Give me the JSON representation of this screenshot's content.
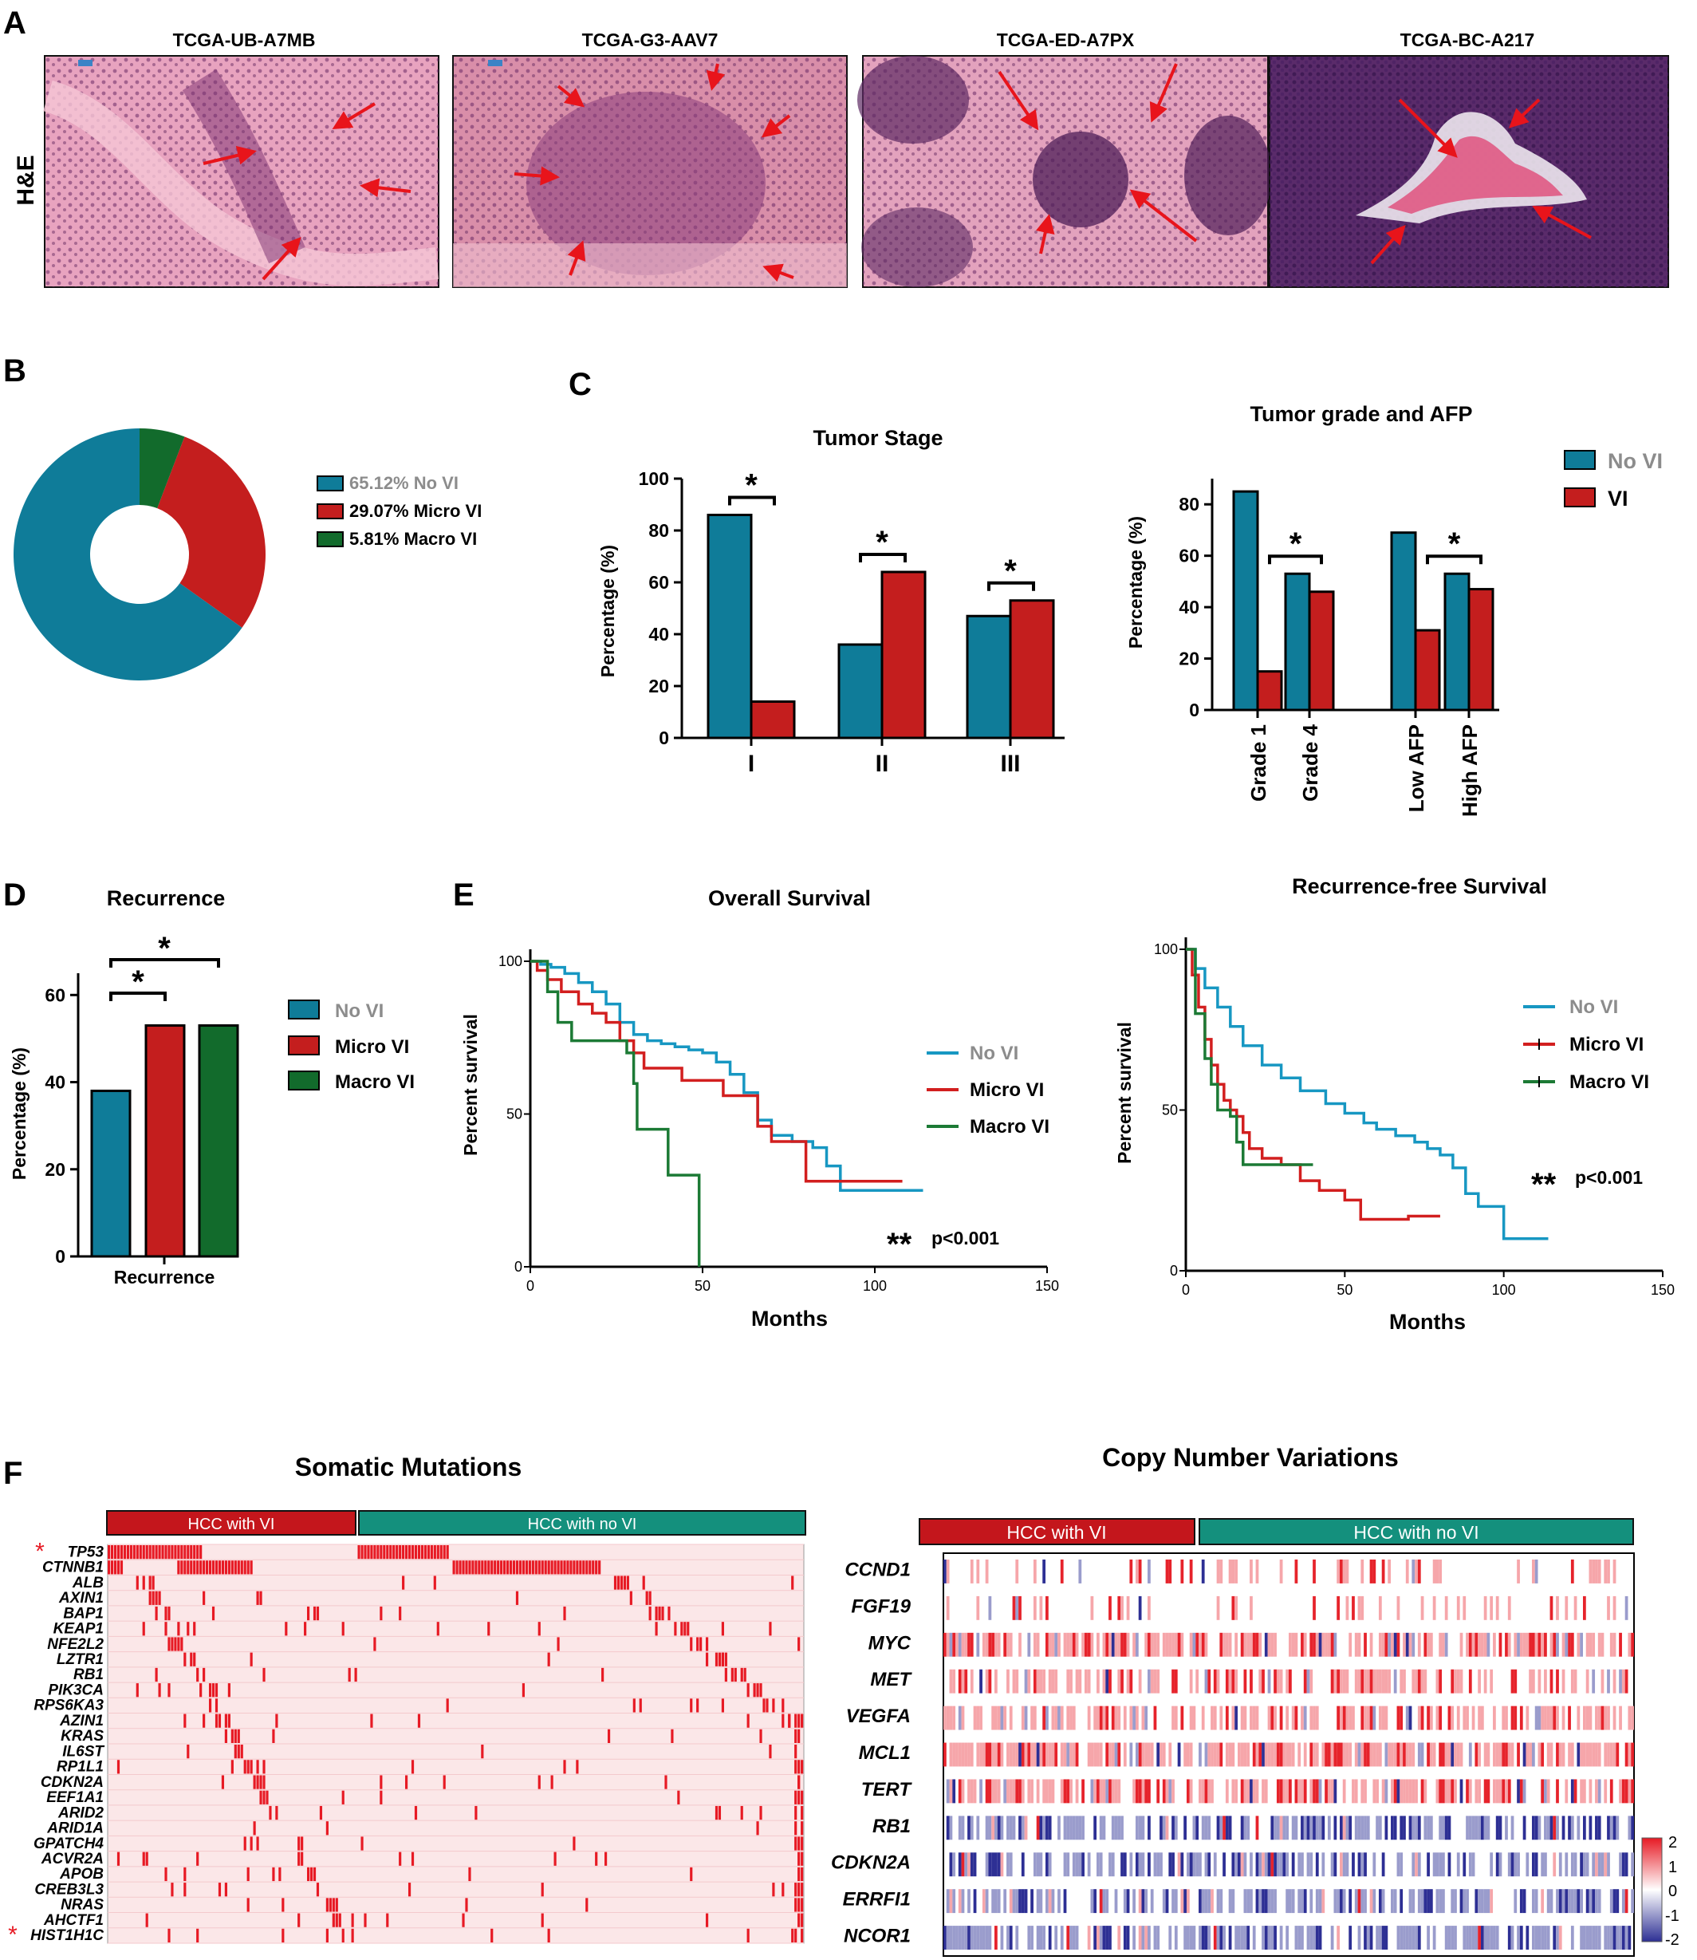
{
  "panel_letters": {
    "A": "A",
    "B": "B",
    "C": "C",
    "D": "D",
    "E": "E",
    "F": "F"
  },
  "colors": {
    "no_vi": "#0f7c99",
    "vi": "#c41e1e",
    "macro": "#126b2c",
    "he_pink": "#e79ab8",
    "he_purple": "#7e3b73",
    "arrow": "#e8141b",
    "teal_header": "#14907d",
    "heat_red": "#e71a24",
    "heat_blue": "#2d2f94"
  },
  "panel_A": {
    "row_label": "H&E",
    "images": [
      {
        "title": "TCGA-UB-A7MB"
      },
      {
        "title": "TCGA-G3-AAV7"
      },
      {
        "title": "TCGA-ED-A7PX"
      },
      {
        "title": "TCGA-BC-A217"
      }
    ]
  },
  "chart_data": [
    {
      "id": "B",
      "type": "pie",
      "title": "",
      "slices": [
        {
          "label": "65.12% No VI",
          "value": 65.12,
          "color": "#0f7c99",
          "text_color": "#8c8c8c"
        },
        {
          "label": "29.07% Micro VI",
          "value": 29.07,
          "color": "#c41e1e",
          "text_color": "#000000"
        },
        {
          "label": "5.81% Macro VI",
          "value": 5.81,
          "color": "#126b2c",
          "text_color": "#000000"
        }
      ],
      "legend": "right"
    },
    {
      "id": "C1",
      "type": "bar",
      "title": "Tumor Stage",
      "ylabel": "Percentage (%)",
      "categories": [
        "I",
        "II",
        "III"
      ],
      "series": [
        {
          "name": "No VI",
          "values": [
            86,
            36,
            47
          ]
        },
        {
          "name": "VI",
          "values": [
            14,
            64,
            53
          ]
        }
      ],
      "ylim": [
        0,
        100
      ],
      "yticks": [
        0,
        20,
        40,
        60,
        80,
        100
      ],
      "significance": [
        "*",
        "*",
        "*"
      ]
    },
    {
      "id": "C2",
      "type": "bar",
      "title": "Tumor grade and AFP",
      "ylabel": "Percentage (%)",
      "categories": [
        "Grade 1",
        "Grade 4",
        "Low AFP",
        "High AFP"
      ],
      "series": [
        {
          "name": "No VI",
          "values": [
            85,
            53,
            69,
            53
          ]
        },
        {
          "name": "VI",
          "values": [
            15,
            46,
            31,
            47
          ]
        }
      ],
      "ylim": [
        0,
        90
      ],
      "yticks": [
        0,
        20,
        40,
        60,
        80
      ],
      "significance": [
        "*",
        "*"
      ],
      "legend_entries": [
        "No VI",
        "VI"
      ]
    },
    {
      "id": "D",
      "type": "bar",
      "title": "Recurrence",
      "ylabel": "Percentage (%)",
      "xlabel": "Recurrence",
      "categories": [
        "No VI",
        "Micro VI",
        "Macro VI"
      ],
      "values": [
        38,
        53,
        53
      ],
      "ylim": [
        0,
        65
      ],
      "yticks": [
        0,
        20,
        40,
        60
      ],
      "significance": [
        "*",
        "*"
      ],
      "legend_entries": [
        "No VI",
        "Micro VI",
        "Macro VI"
      ]
    },
    {
      "id": "E1",
      "type": "line",
      "title": "Overall Survival",
      "xlabel": "Months",
      "ylabel": "Percent survival",
      "xlim": [
        0,
        150
      ],
      "ylim": [
        0,
        100
      ],
      "xticks": [
        0,
        50,
        100,
        150
      ],
      "yticks": [
        0,
        50,
        100
      ],
      "pvalue": "p<0.001",
      "stars": "**",
      "series": [
        {
          "name": "No VI",
          "points": [
            [
              0,
              100
            ],
            [
              3,
              99
            ],
            [
              6,
              98
            ],
            [
              10,
              96
            ],
            [
              14,
              93
            ],
            [
              18,
              90
            ],
            [
              22,
              86
            ],
            [
              26,
              80
            ],
            [
              30,
              76
            ],
            [
              34,
              74
            ],
            [
              38,
              73
            ],
            [
              42,
              72
            ],
            [
              46,
              71
            ],
            [
              50,
              70
            ],
            [
              54,
              67
            ],
            [
              58,
              63
            ],
            [
              62,
              57
            ],
            [
              66,
              48
            ],
            [
              70,
              43
            ],
            [
              76,
              41
            ],
            [
              82,
              39
            ],
            [
              86,
              33
            ],
            [
              90,
              25
            ],
            [
              100,
              25
            ],
            [
              114,
              25
            ]
          ]
        },
        {
          "name": "Micro VI",
          "points": [
            [
              0,
              100
            ],
            [
              2,
              97
            ],
            [
              5,
              94
            ],
            [
              9,
              90
            ],
            [
              14,
              86
            ],
            [
              18,
              83
            ],
            [
              22,
              80
            ],
            [
              26,
              74
            ],
            [
              30,
              70
            ],
            [
              33,
              65
            ],
            [
              40,
              65
            ],
            [
              44,
              61
            ],
            [
              52,
              61
            ],
            [
              56,
              56
            ],
            [
              62,
              56
            ],
            [
              66,
              46
            ],
            [
              70,
              41
            ],
            [
              78,
              41
            ],
            [
              80,
              28
            ],
            [
              86,
              28
            ],
            [
              108,
              28
            ]
          ]
        },
        {
          "name": "Macro VI",
          "points": [
            [
              0,
              100
            ],
            [
              5,
              90
            ],
            [
              8,
              80
            ],
            [
              12,
              74
            ],
            [
              25,
              74
            ],
            [
              28,
              70
            ],
            [
              30,
              60
            ],
            [
              31,
              45
            ],
            [
              38,
              45
            ],
            [
              40,
              30
            ],
            [
              48,
              30
            ],
            [
              49,
              0
            ]
          ]
        }
      ]
    },
    {
      "id": "E2",
      "type": "line",
      "title": "Recurrence-free Survival",
      "xlabel": "Months",
      "ylabel": "Percent survival",
      "xlim": [
        0,
        150
      ],
      "ylim": [
        0,
        100
      ],
      "xticks": [
        0,
        50,
        100,
        150
      ],
      "yticks": [
        0,
        50,
        100
      ],
      "pvalue": "p<0.001",
      "stars": "**",
      "series": [
        {
          "name": "No VI",
          "points": [
            [
              0,
              100
            ],
            [
              3,
              94
            ],
            [
              6,
              88
            ],
            [
              10,
              82
            ],
            [
              14,
              76
            ],
            [
              18,
              70
            ],
            [
              24,
              64
            ],
            [
              30,
              60
            ],
            [
              36,
              56
            ],
            [
              44,
              52
            ],
            [
              50,
              49
            ],
            [
              56,
              46
            ],
            [
              60,
              44
            ],
            [
              66,
              42
            ],
            [
              72,
              40
            ],
            [
              76,
              38
            ],
            [
              80,
              36
            ],
            [
              84,
              32
            ],
            [
              88,
              24
            ],
            [
              92,
              20
            ],
            [
              98,
              20
            ],
            [
              100,
              10
            ],
            [
              114,
              10
            ]
          ]
        },
        {
          "name": "Micro VI",
          "points": [
            [
              0,
              100
            ],
            [
              2,
              92
            ],
            [
              4,
              82
            ],
            [
              6,
              72
            ],
            [
              8,
              64
            ],
            [
              10,
              58
            ],
            [
              12,
              53
            ],
            [
              14,
              50
            ],
            [
              16,
              48
            ],
            [
              18,
              43
            ],
            [
              20,
              38
            ],
            [
              24,
              35
            ],
            [
              30,
              33
            ],
            [
              36,
              28
            ],
            [
              42,
              25
            ],
            [
              50,
              22
            ],
            [
              55,
              16
            ],
            [
              65,
              16
            ],
            [
              70,
              17
            ],
            [
              80,
              17
            ]
          ]
        },
        {
          "name": "Macro VI",
          "points": [
            [
              0,
              100
            ],
            [
              3,
              80
            ],
            [
              6,
              66
            ],
            [
              8,
              58
            ],
            [
              10,
              50
            ],
            [
              14,
              48
            ],
            [
              16,
              40
            ],
            [
              18,
              33
            ],
            [
              26,
              33
            ],
            [
              40,
              33
            ]
          ]
        }
      ]
    },
    {
      "id": "F1",
      "type": "heatmap",
      "title": "Somatic Mutations",
      "group_labels": [
        "HCC with VI",
        "HCC with no VI"
      ],
      "rows": [
        "TP53",
        "CTNNB1",
        "ALB",
        "AXIN1",
        "BAP1",
        "KEAP1",
        "NFE2L2",
        "LZTR1",
        "RB1",
        "PIK3CA",
        "RPS6KA3",
        "AZIN1",
        "KRAS",
        "IL6ST",
        "RP1L1",
        "CDKN2A",
        "EEF1A1",
        "ARID2",
        "ARID1A",
        "GPATCH4",
        "ACVR2A",
        "APOB",
        "CREB3L3",
        "NRAS",
        "AHCTF1",
        "HIST1H1C"
      ],
      "starred_rows": [
        "TP53",
        "HIST1H1C"
      ],
      "star": "*"
    },
    {
      "id": "F2",
      "type": "heatmap",
      "title": "Copy Number Variations",
      "group_labels": [
        "HCC with VI",
        "HCC with no VI"
      ],
      "rows": [
        "CCND1",
        "FGF19",
        "MYC",
        "MET",
        "VEGFA",
        "MCL1",
        "TERT",
        "RB1",
        "CDKN2A",
        "ERRFI1",
        "NCOR1"
      ],
      "colorbar_ticks": [
        "2",
        "1",
        "0",
        "-1",
        "-2"
      ],
      "colorbar_range": [
        -2,
        2
      ]
    }
  ]
}
